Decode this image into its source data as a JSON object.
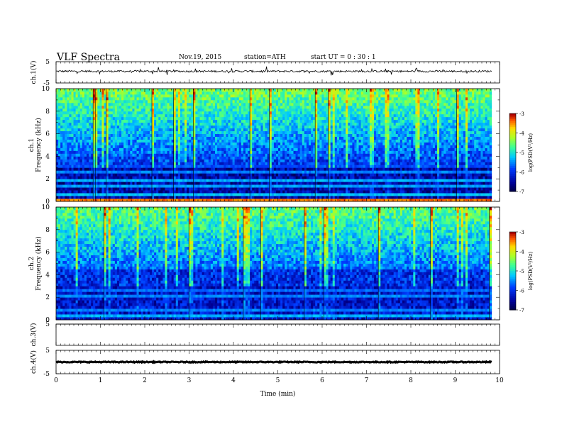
{
  "header": {
    "title": "VLF  Spectra",
    "date": "Nov.19, 2015",
    "station": "station=ATH",
    "start": "start  UT =   0  : 30 : 1"
  },
  "chart_data": {
    "type": "heatmap",
    "x_axis": {
      "label": "Time  (min)",
      "range": [
        0,
        10
      ],
      "ticks": [
        "0",
        "1",
        "2",
        "3",
        "4",
        "5",
        "6",
        "7",
        "8",
        "9",
        "10"
      ],
      "data_end": 9.82
    },
    "panels": [
      {
        "id": "ch1-waveform",
        "type": "line",
        "ylabel": "ch.1(V)",
        "ylim": [
          -5,
          5
        ],
        "yticks": [
          "5",
          "-5"
        ],
        "level": 0.5,
        "noise": 0.45
      },
      {
        "id": "ch1-spectrogram",
        "type": "heatmap",
        "ylabel": [
          "ch.1",
          "Frequency  (kHz)"
        ],
        "ylim": [
          0,
          10
        ],
        "yticks": [
          "0",
          "2",
          "4",
          "6",
          "8",
          "10"
        ],
        "bands": [
          {
            "freq": 0.2,
            "level": -3.4
          },
          {
            "freq": 0.6,
            "level": -5.2
          },
          {
            "freq": 1.0,
            "level": -5.6
          },
          {
            "freq": 1.4,
            "level": -5.4
          },
          {
            "freq": 1.8,
            "level": -5.3
          },
          {
            "freq": 2.6,
            "level": -5.5
          },
          {
            "freq": 3.2,
            "level": -5.8
          },
          {
            "freq": 5.9,
            "level": -5.7
          }
        ],
        "colorbar": {
          "label": "log(PSD(V²/Hz)",
          "range": [
            -7,
            -3
          ],
          "ticks": [
            "-3",
            "-4",
            "-5",
            "-6",
            "-7"
          ]
        }
      },
      {
        "id": "ch2-spectrogram",
        "type": "heatmap",
        "ylabel": [
          "ch.2",
          "Frequency  (kHz)"
        ],
        "ylim": [
          0,
          10
        ],
        "yticks": [
          "0",
          "2",
          "4",
          "6",
          "8",
          "10"
        ],
        "bands": [
          {
            "freq": 0.3,
            "level": -5.3
          },
          {
            "freq": 0.9,
            "level": -5.5
          },
          {
            "freq": 1.5,
            "level": -5.4
          },
          {
            "freq": 2.2,
            "level": -5.5
          },
          {
            "freq": 2.7,
            "level": -5.6
          },
          {
            "freq": 4.8,
            "level": -5.7
          }
        ],
        "colorbar": {
          "label": "log(PSD(V²/Hz)",
          "range": [
            -7,
            -3
          ],
          "ticks": [
            "-3",
            "-4",
            "-5",
            "-6",
            "-7"
          ]
        }
      },
      {
        "id": "ch3-waveform",
        "type": "line",
        "ylabel": "ch.3(V)",
        "ylim": [
          -5,
          5
        ],
        "yticks": [
          "5"
        ],
        "level": 5,
        "noise": 0.05
      },
      {
        "id": "ch4-waveform",
        "type": "line",
        "ylabel": "ch.4(V)",
        "ylim": [
          -5,
          5
        ],
        "yticks": [
          "5",
          "-5"
        ],
        "level": 0,
        "noise": 0.2
      }
    ]
  }
}
